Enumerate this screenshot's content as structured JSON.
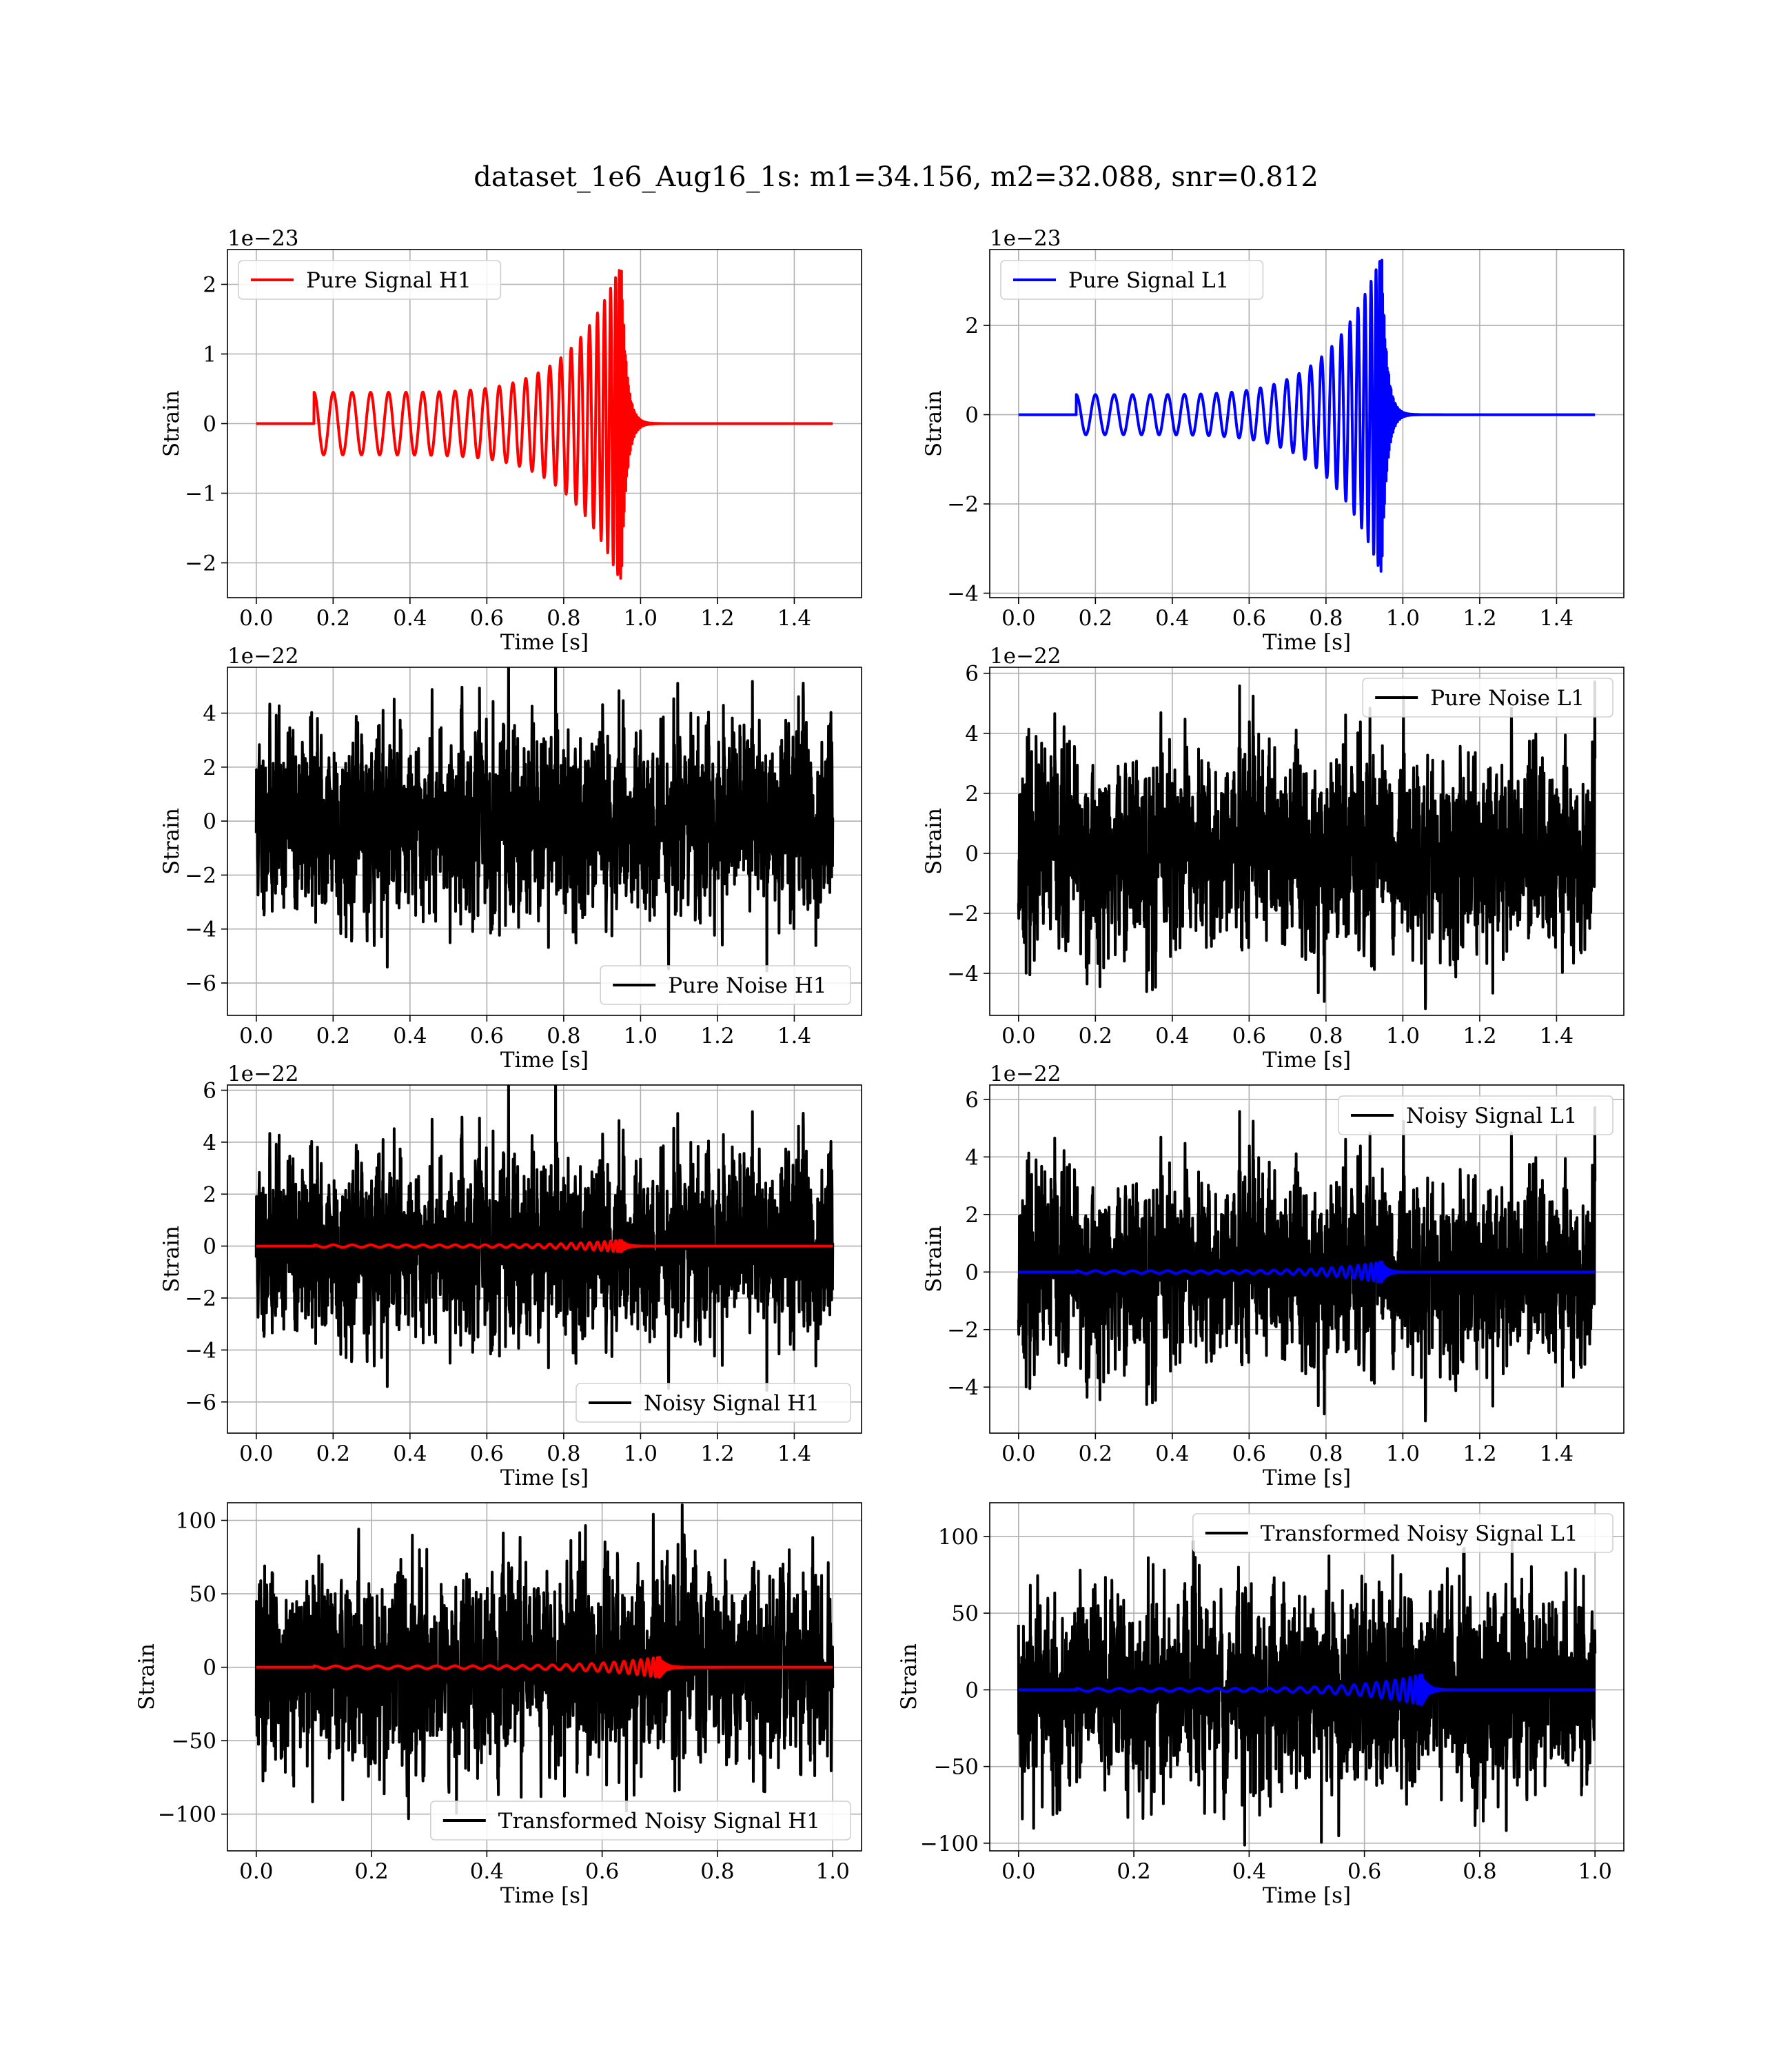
{
  "figure": {
    "title": "dataset_1e6_Aug16_1s: m1=34.156, m2=32.088, snr=0.812"
  },
  "chart_data": [
    {
      "type": "line",
      "panel": "pure-signal-h1",
      "xlabel": "Time [s]",
      "ylabel": "Strain",
      "offset_text": "1e−23",
      "xlim": [
        -0.075,
        1.575
      ],
      "ylim": [
        -2.5,
        2.5
      ],
      "xticks": [
        0.0,
        0.2,
        0.4,
        0.6,
        0.8,
        1.0,
        1.2,
        1.4
      ],
      "xtick_labels": [
        "0.0",
        "0.2",
        "0.4",
        "0.6",
        "0.8",
        "1.0",
        "1.2",
        "1.4"
      ],
      "yticks": [
        -2,
        -1,
        0,
        1,
        2
      ],
      "ytick_labels": [
        "−2",
        "−1",
        "0",
        "1",
        "2"
      ],
      "grid": true,
      "legend_position": "upper left",
      "series": [
        {
          "name": "Pure Signal H1",
          "color": "#ff0000",
          "kind": "chirp",
          "t_start": 0.15,
          "t_merge": 0.95,
          "t_end": 1.5,
          "amp_start": 0.45,
          "amp_peak": 2.3,
          "cycles": 25,
          "width": 4
        }
      ]
    },
    {
      "type": "line",
      "panel": "pure-signal-l1",
      "xlabel": "Time [s]",
      "ylabel": "Strain",
      "offset_text": "1e−23",
      "xlim": [
        -0.075,
        1.575
      ],
      "ylim": [
        -4.1,
        3.7
      ],
      "xticks": [
        0.0,
        0.2,
        0.4,
        0.6,
        0.8,
        1.0,
        1.2,
        1.4
      ],
      "xtick_labels": [
        "0.0",
        "0.2",
        "0.4",
        "0.6",
        "0.8",
        "1.0",
        "1.2",
        "1.4"
      ],
      "yticks": [
        -4,
        -2,
        0,
        2
      ],
      "ytick_labels": [
        "−4",
        "−2",
        "0",
        "2"
      ],
      "grid": true,
      "legend_position": "upper left",
      "series": [
        {
          "name": "Pure Signal L1",
          "color": "#0000ff",
          "kind": "chirp",
          "t_start": 0.15,
          "t_merge": 0.945,
          "t_end": 1.5,
          "amp_start": 0.45,
          "amp_peak": 3.6,
          "cycles": 25,
          "width": 4
        }
      ]
    },
    {
      "type": "line",
      "panel": "pure-noise-h1",
      "xlabel": "Time [s]",
      "ylabel": "Strain",
      "offset_text": "1e−22",
      "xlim": [
        -0.075,
        1.575
      ],
      "ylim": [
        -7.2,
        5.7
      ],
      "xticks": [
        0.0,
        0.2,
        0.4,
        0.6,
        0.8,
        1.0,
        1.2,
        1.4
      ],
      "xtick_labels": [
        "0.0",
        "0.2",
        "0.4",
        "0.6",
        "0.8",
        "1.0",
        "1.2",
        "1.4"
      ],
      "yticks": [
        -6,
        -4,
        -2,
        0,
        2,
        4
      ],
      "ytick_labels": [
        "−6",
        "−4",
        "−2",
        "0",
        "2",
        "4"
      ],
      "grid": true,
      "legend_position": "lower right",
      "series": [
        {
          "name": "Pure Noise H1",
          "color": "#000000",
          "kind": "noise",
          "t_start": 0.0,
          "t_end": 1.5,
          "sigma": 1.6,
          "seed": 11,
          "width": 4
        }
      ]
    },
    {
      "type": "line",
      "panel": "pure-noise-l1",
      "xlabel": "Time [s]",
      "ylabel": "Strain",
      "offset_text": "1e−22",
      "xlim": [
        -0.075,
        1.575
      ],
      "ylim": [
        -5.4,
        6.2
      ],
      "xticks": [
        0.0,
        0.2,
        0.4,
        0.6,
        0.8,
        1.0,
        1.2,
        1.4
      ],
      "xtick_labels": [
        "0.0",
        "0.2",
        "0.4",
        "0.6",
        "0.8",
        "1.0",
        "1.2",
        "1.4"
      ],
      "yticks": [
        -4,
        -2,
        0,
        2,
        4,
        6
      ],
      "ytick_labels": [
        "−4",
        "−2",
        "0",
        "2",
        "4",
        "6"
      ],
      "grid": true,
      "legend_position": "upper right",
      "series": [
        {
          "name": "Pure Noise L1",
          "color": "#000000",
          "kind": "noise",
          "t_start": 0.0,
          "t_end": 1.5,
          "sigma": 1.5,
          "seed": 23,
          "width": 4
        }
      ]
    },
    {
      "type": "line",
      "panel": "noisy-signal-h1",
      "xlabel": "Time [s]",
      "ylabel": "Strain",
      "offset_text": "1e−22",
      "xlim": [
        -0.075,
        1.575
      ],
      "ylim": [
        -7.2,
        6.2
      ],
      "xticks": [
        0.0,
        0.2,
        0.4,
        0.6,
        0.8,
        1.0,
        1.2,
        1.4
      ],
      "xtick_labels": [
        "0.0",
        "0.2",
        "0.4",
        "0.6",
        "0.8",
        "1.0",
        "1.2",
        "1.4"
      ],
      "yticks": [
        -6,
        -4,
        -2,
        0,
        2,
        4,
        6
      ],
      "ytick_labels": [
        "−6",
        "−4",
        "−2",
        "0",
        "2",
        "4",
        "6"
      ],
      "grid": true,
      "legend_position": "lower right",
      "series": [
        {
          "name": "Noisy Signal H1",
          "color": "#000000",
          "kind": "noise",
          "t_start": 0.0,
          "t_end": 1.5,
          "sigma": 1.6,
          "seed": 11,
          "width": 4
        },
        {
          "name": "",
          "color": "#ff0000",
          "kind": "chirp",
          "t_start": 0.15,
          "t_merge": 0.95,
          "t_end": 1.5,
          "amp_start": 0.045,
          "amp_peak": 0.23,
          "cycles": 25,
          "width": 4
        }
      ]
    },
    {
      "type": "line",
      "panel": "noisy-signal-l1",
      "xlabel": "Time [s]",
      "ylabel": "Strain",
      "offset_text": "1e−22",
      "xlim": [
        -0.075,
        1.575
      ],
      "ylim": [
        -5.6,
        6.5
      ],
      "xticks": [
        0.0,
        0.2,
        0.4,
        0.6,
        0.8,
        1.0,
        1.2,
        1.4
      ],
      "xtick_labels": [
        "0.0",
        "0.2",
        "0.4",
        "0.6",
        "0.8",
        "1.0",
        "1.2",
        "1.4"
      ],
      "yticks": [
        -4,
        -2,
        0,
        2,
        4,
        6
      ],
      "ytick_labels": [
        "−4",
        "−2",
        "0",
        "2",
        "4",
        "6"
      ],
      "grid": true,
      "legend_position": "upper right",
      "series": [
        {
          "name": "Noisy Signal L1",
          "color": "#000000",
          "kind": "noise",
          "t_start": 0.0,
          "t_end": 1.5,
          "sigma": 1.5,
          "seed": 23,
          "width": 4
        },
        {
          "name": "",
          "color": "#0000ff",
          "kind": "chirp",
          "t_start": 0.15,
          "t_merge": 0.945,
          "t_end": 1.5,
          "amp_start": 0.045,
          "amp_peak": 0.36,
          "cycles": 25,
          "width": 4
        }
      ]
    },
    {
      "type": "line",
      "panel": "transformed-noisy-signal-h1",
      "xlabel": "Time [s]",
      "ylabel": "Strain",
      "offset_text": "",
      "xlim": [
        -0.05,
        1.05
      ],
      "ylim": [
        -125,
        112
      ],
      "xticks": [
        0.0,
        0.2,
        0.4,
        0.6,
        0.8,
        1.0
      ],
      "xtick_labels": [
        "0.0",
        "0.2",
        "0.4",
        "0.6",
        "0.8",
        "1.0"
      ],
      "yticks": [
        -100,
        -50,
        0,
        50,
        100
      ],
      "ytick_labels": [
        "−100",
        "−50",
        "0",
        "50",
        "100"
      ],
      "grid": true,
      "legend_position": "lower right",
      "series": [
        {
          "name": "Transformed Noisy Signal H1",
          "color": "#000000",
          "kind": "noise",
          "t_start": 0.0,
          "t_end": 1.0,
          "sigma": 30,
          "seed": 37,
          "width": 4
        },
        {
          "name": "",
          "color": "#ff0000",
          "kind": "chirp",
          "t_start": 0.1,
          "t_merge": 0.7,
          "t_end": 1.0,
          "amp_start": 1.0,
          "amp_peak": 7.0,
          "cycles": 25,
          "width": 4
        }
      ]
    },
    {
      "type": "line",
      "panel": "transformed-noisy-signal-l1",
      "xlabel": "Time [s]",
      "ylabel": "Strain",
      "offset_text": "",
      "xlim": [
        -0.05,
        1.05
      ],
      "ylim": [
        -105,
        122
      ],
      "xticks": [
        0.0,
        0.2,
        0.4,
        0.6,
        0.8,
        1.0
      ],
      "xtick_labels": [
        "0.0",
        "0.2",
        "0.4",
        "0.6",
        "0.8",
        "1.0"
      ],
      "yticks": [
        -100,
        -50,
        0,
        50,
        100
      ],
      "ytick_labels": [
        "−100",
        "−50",
        "0",
        "50",
        "100"
      ],
      "grid": true,
      "legend_position": "upper right",
      "series": [
        {
          "name": "Transformed Noisy Signal L1",
          "color": "#000000",
          "kind": "noise",
          "t_start": 0.0,
          "t_end": 1.0,
          "sigma": 30,
          "seed": 53,
          "width": 4
        },
        {
          "name": "",
          "color": "#0000ff",
          "kind": "chirp",
          "t_start": 0.1,
          "t_merge": 0.7,
          "t_end": 1.0,
          "amp_start": 1.0,
          "amp_peak": 10.0,
          "cycles": 25,
          "width": 4
        }
      ]
    }
  ]
}
